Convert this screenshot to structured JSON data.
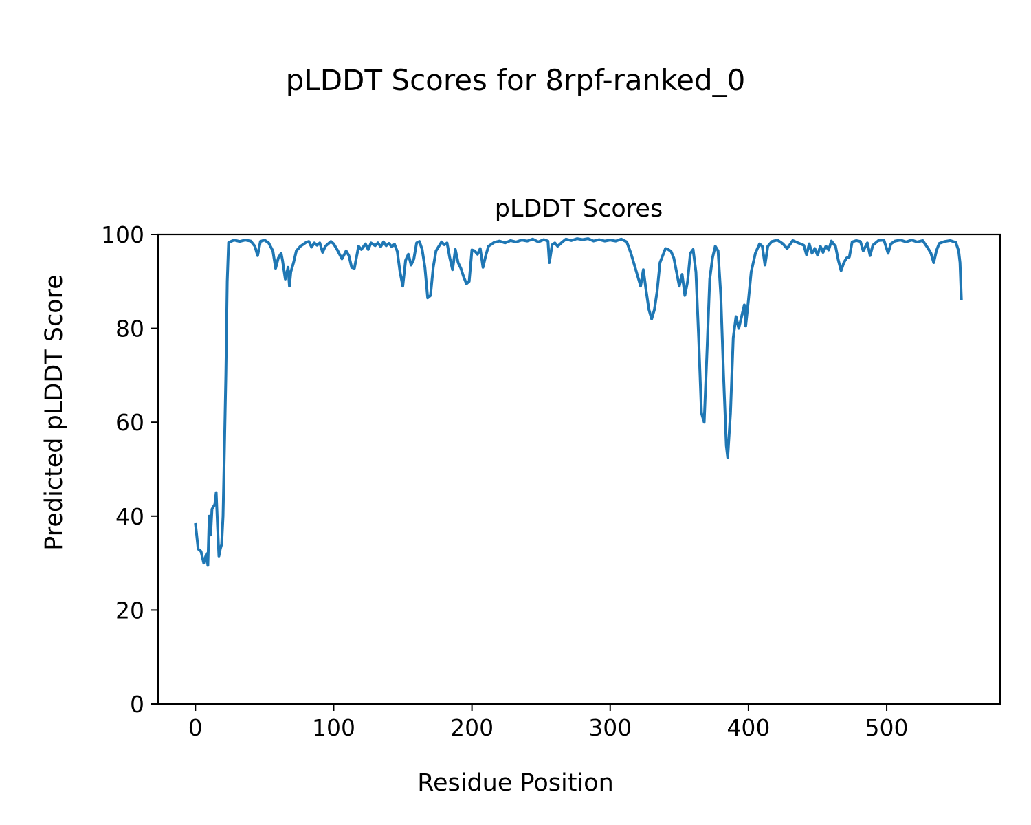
{
  "figure": {
    "suptitle": "pLDDT Scores for 8rpf-ranked_0"
  },
  "chart_data": {
    "type": "line",
    "title": "pLDDT Scores",
    "xlabel": "Residue Position",
    "ylabel": "Predicted pLDDT Score",
    "xlim": [
      -27,
      582
    ],
    "ylim": [
      0,
      100
    ],
    "xticks": [
      0,
      100,
      200,
      300,
      400,
      500
    ],
    "xtick_labels": [
      "0",
      "100",
      "200",
      "300",
      "400",
      "500"
    ],
    "yticks": [
      0,
      20,
      40,
      60,
      80,
      100
    ],
    "ytick_labels": [
      "0",
      "20",
      "40",
      "60",
      "80",
      "100"
    ],
    "grid": false,
    "line_color": "#1f77b4",
    "series": [
      {
        "points": [
          [
            0,
            38.5
          ],
          [
            2,
            33
          ],
          [
            4,
            32.5
          ],
          [
            6,
            30
          ],
          [
            8,
            32
          ],
          [
            9,
            29.5
          ],
          [
            10,
            40
          ],
          [
            11,
            36
          ],
          [
            12,
            41.5
          ],
          [
            14,
            42.5
          ],
          [
            15,
            45
          ],
          [
            16,
            38
          ],
          [
            17,
            31.5
          ],
          [
            18,
            33
          ],
          [
            19,
            34
          ],
          [
            20,
            40
          ],
          [
            21,
            55
          ],
          [
            22,
            70
          ],
          [
            23,
            90
          ],
          [
            24,
            98.3
          ],
          [
            28,
            98.8
          ],
          [
            32,
            98.5
          ],
          [
            36,
            98.8
          ],
          [
            40,
            98.6
          ],
          [
            43,
            97.5
          ],
          [
            45,
            95.5
          ],
          [
            47,
            98.5
          ],
          [
            50,
            98.8
          ],
          [
            53,
            98.2
          ],
          [
            56,
            96.5
          ],
          [
            58,
            92.8
          ],
          [
            60,
            95
          ],
          [
            62,
            96
          ],
          [
            63,
            94.5
          ],
          [
            65,
            90.5
          ],
          [
            67,
            93
          ],
          [
            68,
            89
          ],
          [
            69,
            92
          ],
          [
            71,
            94
          ],
          [
            73,
            96.5
          ],
          [
            76,
            97.5
          ],
          [
            80,
            98.3
          ],
          [
            82,
            98.5
          ],
          [
            84,
            97.3
          ],
          [
            86,
            98.2
          ],
          [
            88,
            97.7
          ],
          [
            90,
            98.2
          ],
          [
            92,
            96.2
          ],
          [
            94,
            97.5
          ],
          [
            96,
            98
          ],
          [
            98,
            98.5
          ],
          [
            100,
            98
          ],
          [
            103,
            96.5
          ],
          [
            106,
            94.8
          ],
          [
            109,
            96.5
          ],
          [
            111,
            95.5
          ],
          [
            113,
            93
          ],
          [
            115,
            92.8
          ],
          [
            118,
            97.5
          ],
          [
            120,
            96.8
          ],
          [
            123,
            98
          ],
          [
            125,
            96.8
          ],
          [
            127,
            98.2
          ],
          [
            130,
            97.6
          ],
          [
            132,
            98.2
          ],
          [
            134,
            97.4
          ],
          [
            136,
            98.4
          ],
          [
            138,
            97.6
          ],
          [
            140,
            98.1
          ],
          [
            142,
            97.4
          ],
          [
            144,
            97.9
          ],
          [
            146,
            96.4
          ],
          [
            148,
            92
          ],
          [
            150,
            89
          ],
          [
            152,
            94.5
          ],
          [
            154,
            95.8
          ],
          [
            156,
            93.5
          ],
          [
            158,
            94.8
          ],
          [
            160,
            98.2
          ],
          [
            162,
            98.5
          ],
          [
            164,
            96.8
          ],
          [
            166,
            93
          ],
          [
            168,
            86.5
          ],
          [
            170,
            87
          ],
          [
            172,
            93
          ],
          [
            174,
            96.5
          ],
          [
            178,
            98.4
          ],
          [
            180,
            97.8
          ],
          [
            182,
            98.2
          ],
          [
            184,
            95
          ],
          [
            186,
            92.5
          ],
          [
            188,
            96.8
          ],
          [
            190,
            94
          ],
          [
            192,
            92.8
          ],
          [
            194,
            91
          ],
          [
            196,
            89.5
          ],
          [
            198,
            90
          ],
          [
            200,
            96.7
          ],
          [
            202,
            96.5
          ],
          [
            204,
            95.8
          ],
          [
            206,
            97
          ],
          [
            208,
            93
          ],
          [
            210,
            95.5
          ],
          [
            212,
            97.5
          ],
          [
            216,
            98.3
          ],
          [
            220,
            98.6
          ],
          [
            224,
            98.2
          ],
          [
            228,
            98.7
          ],
          [
            232,
            98.4
          ],
          [
            236,
            98.8
          ],
          [
            240,
            98.6
          ],
          [
            244,
            99
          ],
          [
            248,
            98.4
          ],
          [
            252,
            98.9
          ],
          [
            255,
            98.6
          ],
          [
            256,
            94
          ],
          [
            258,
            97.8
          ],
          [
            260,
            98.2
          ],
          [
            262,
            97.5
          ],
          [
            265,
            98.3
          ],
          [
            268,
            99
          ],
          [
            272,
            98.7
          ],
          [
            276,
            99.1
          ],
          [
            280,
            98.9
          ],
          [
            284,
            99.1
          ],
          [
            288,
            98.6
          ],
          [
            292,
            98.9
          ],
          [
            296,
            98.6
          ],
          [
            300,
            98.8
          ],
          [
            304,
            98.6
          ],
          [
            308,
            99
          ],
          [
            312,
            98.4
          ],
          [
            315,
            96
          ],
          [
            318,
            93
          ],
          [
            320,
            91
          ],
          [
            322,
            89
          ],
          [
            324,
            92.5
          ],
          [
            326,
            88
          ],
          [
            328,
            84
          ],
          [
            330,
            82
          ],
          [
            332,
            84
          ],
          [
            334,
            88
          ],
          [
            336,
            94
          ],
          [
            338,
            95.5
          ],
          [
            340,
            97
          ],
          [
            342,
            96.8
          ],
          [
            344,
            96.4
          ],
          [
            346,
            95
          ],
          [
            348,
            92
          ],
          [
            350,
            89
          ],
          [
            352,
            91.5
          ],
          [
            354,
            87
          ],
          [
            356,
            90
          ],
          [
            358,
            96
          ],
          [
            360,
            96.8
          ],
          [
            362,
            92
          ],
          [
            364,
            78
          ],
          [
            366,
            62
          ],
          [
            368,
            60
          ],
          [
            370,
            75
          ],
          [
            372,
            90.5
          ],
          [
            374,
            95
          ],
          [
            376,
            97.5
          ],
          [
            378,
            96.5
          ],
          [
            380,
            87
          ],
          [
            382,
            70
          ],
          [
            384,
            55
          ],
          [
            385,
            52.5
          ],
          [
            387,
            62
          ],
          [
            389,
            78
          ],
          [
            391,
            82.5
          ],
          [
            393,
            80
          ],
          [
            395,
            82.5
          ],
          [
            397,
            85
          ],
          [
            398,
            80.5
          ],
          [
            400,
            86
          ],
          [
            402,
            92
          ],
          [
            405,
            96
          ],
          [
            408,
            98
          ],
          [
            410,
            97.5
          ],
          [
            412,
            93.5
          ],
          [
            414,
            97.5
          ],
          [
            417,
            98.5
          ],
          [
            421,
            98.8
          ],
          [
            425,
            98
          ],
          [
            428,
            97
          ],
          [
            432,
            98.7
          ],
          [
            436,
            98.2
          ],
          [
            440,
            97.7
          ],
          [
            442,
            95.7
          ],
          [
            444,
            98
          ],
          [
            446,
            96
          ],
          [
            448,
            97
          ],
          [
            450,
            95.6
          ],
          [
            452,
            97.5
          ],
          [
            454,
            96.2
          ],
          [
            456,
            97.5
          ],
          [
            458,
            96.7
          ],
          [
            460,
            98.6
          ],
          [
            463,
            97.5
          ],
          [
            465,
            94.5
          ],
          [
            467,
            92.3
          ],
          [
            469,
            94
          ],
          [
            471,
            95
          ],
          [
            473,
            95.2
          ],
          [
            475,
            98.4
          ],
          [
            478,
            98.7
          ],
          [
            481,
            98.5
          ],
          [
            483,
            96.5
          ],
          [
            486,
            98.2
          ],
          [
            488,
            95.5
          ],
          [
            490,
            97.7
          ],
          [
            494,
            98.7
          ],
          [
            498,
            98.8
          ],
          [
            501,
            96
          ],
          [
            503,
            98
          ],
          [
            506,
            98.6
          ],
          [
            510,
            98.8
          ],
          [
            514,
            98.4
          ],
          [
            518,
            98.8
          ],
          [
            522,
            98.4
          ],
          [
            526,
            98.7
          ],
          [
            530,
            97
          ],
          [
            532,
            96
          ],
          [
            534,
            94
          ],
          [
            536,
            96.6
          ],
          [
            538,
            98.1
          ],
          [
            542,
            98.5
          ],
          [
            546,
            98.7
          ],
          [
            550,
            98.3
          ],
          [
            552,
            96.5
          ],
          [
            553,
            94
          ],
          [
            554,
            86
          ]
        ]
      }
    ]
  }
}
